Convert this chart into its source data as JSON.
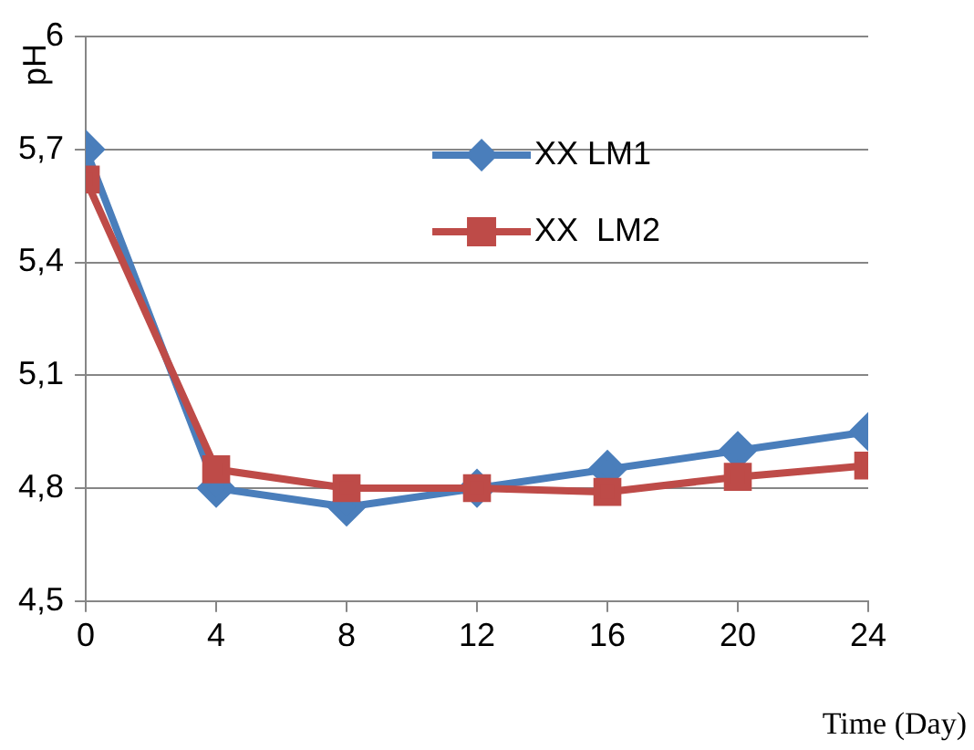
{
  "chart_data": {
    "type": "line",
    "xlabel": "Time (Day)",
    "ylabel": "pH",
    "x": [
      0,
      4,
      8,
      12,
      16,
      20,
      24
    ],
    "series": [
      {
        "name": "XX LM1",
        "color": "#4a7ebb",
        "marker": "diamond",
        "values": [
          5.7,
          4.8,
          4.75,
          4.8,
          4.85,
          4.9,
          4.95
        ]
      },
      {
        "name": "XX  LM2",
        "color": "#be4b48",
        "marker": "square",
        "values": [
          5.62,
          4.85,
          4.8,
          4.8,
          4.79,
          4.83,
          4.86
        ]
      }
    ],
    "xlim": [
      0,
      24
    ],
    "xticks": [
      0,
      4,
      8,
      12,
      16,
      20,
      24
    ],
    "ylim": [
      4.5,
      6
    ],
    "yticks": [
      {
        "value": 4.5,
        "label": "4,5"
      },
      {
        "value": 4.8,
        "label": "4,8"
      },
      {
        "value": 5.1,
        "label": "5,1"
      },
      {
        "value": 5.4,
        "label": "5,4"
      },
      {
        "value": 5.7,
        "label": "5,7"
      },
      6
    ],
    "grid": "y",
    "legend": "top right",
    "line_style": "solid"
  }
}
